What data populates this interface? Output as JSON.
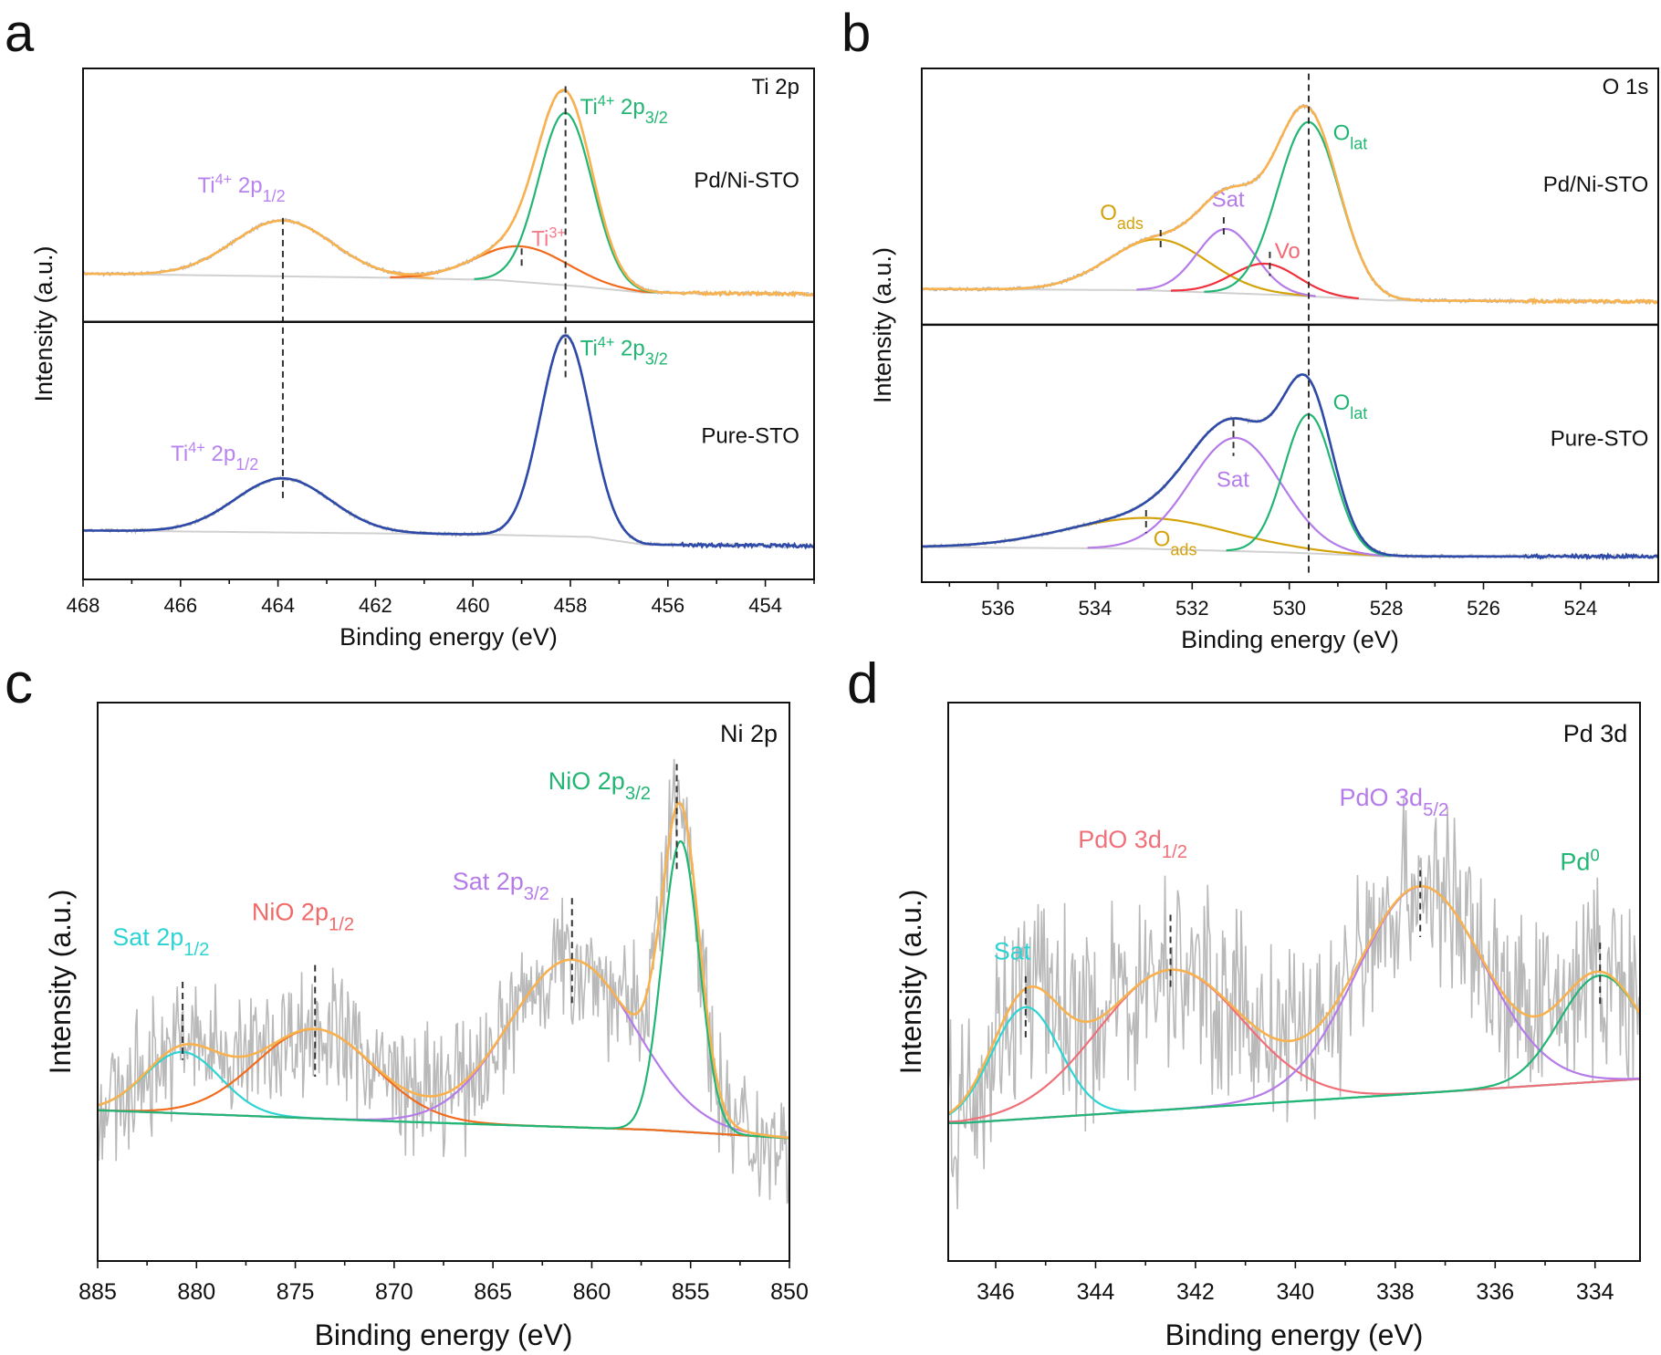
{
  "chart_data": [
    {
      "panel": "a",
      "type": "line",
      "element_label": "Ti 2p",
      "xlabel": "Binding energy (eV)",
      "ylabel": "Intensity (a.u.)",
      "xlim": [
        468,
        453
      ],
      "xticks": [
        "468",
        "466",
        "464",
        "462",
        "460",
        "458",
        "456",
        "454"
      ],
      "tick_step": 2,
      "raw_noise": 0.006,
      "grid": false,
      "subplots": [
        {
          "sample": "Pd/Ni-STO",
          "sample_label_pos": [
            453.3,
            0.53
          ],
          "element_label_pos": [
            453.3,
            0.9
          ],
          "envelope_color": "#f7b24f",
          "background": [
            [
              468,
              0.19
            ],
            [
              462,
              0.175
            ],
            [
              459.5,
              0.165
            ],
            [
              457.8,
              0.14
            ],
            [
              456.5,
              0.115
            ],
            [
              453,
              0.11
            ]
          ],
          "peaks": [
            {
              "label": [
                {
                  "t": "Ti"
                },
                {
                  "t": "4+",
                  "s": "sup"
                },
                {
                  "t": " 2p"
                },
                {
                  "t": "1/2",
                  "s": "sub"
                }
              ],
              "center": 463.9,
              "height": 0.22,
              "fwhm": 2.4,
              "color": "#f7b24f",
              "label_color": "#b883f0",
              "label_pos": [
                465.65,
                0.51
              ]
            },
            {
              "label": [
                {
                  "t": "Ti"
                },
                {
                  "t": "3+",
                  "s": "sup"
                }
              ],
              "center": 459.0,
              "height": 0.14,
              "fwhm": 2.2,
              "color": "#f26b1d",
              "label_color": "#f57b8a",
              "label_pos": [
                458.8,
                0.3
              ]
            },
            {
              "label": [
                {
                  "t": "Ti"
                },
                {
                  "t": "4+",
                  "s": "sup"
                },
                {
                  "t": " 2p"
                },
                {
                  "t": "3/2",
                  "s": "sub"
                }
              ],
              "center": 458.1,
              "height": 0.68,
              "fwhm": 1.3,
              "color": "#22b573",
              "label_color": "#22b573",
              "label_pos": [
                457.8,
                0.82
              ]
            }
          ]
        },
        {
          "sample": "Pure-STO",
          "sample_label_pos": [
            453.3,
            0.53
          ],
          "envelope_color": "#2e4aa8",
          "background": [
            [
              468,
              0.19
            ],
            [
              460,
              0.175
            ],
            [
              457.6,
              0.165
            ],
            [
              456.5,
              0.135
            ],
            [
              453,
              0.13
            ]
          ],
          "peaks": [
            {
              "label": [
                {
                  "t": "Ti"
                },
                {
                  "t": "4+",
                  "s": "sup"
                },
                {
                  "t": " 2p"
                },
                {
                  "t": "1/2",
                  "s": "sub"
                }
              ],
              "center": 463.9,
              "height": 0.21,
              "fwhm": 2.3,
              "color": "#2e4aa8",
              "label_color": "#b883f0",
              "label_pos": [
                466.2,
                0.46
              ]
            },
            {
              "label": [
                {
                  "t": "Ti"
                },
                {
                  "t": "4+",
                  "s": "sup"
                },
                {
                  "t": " 2p"
                },
                {
                  "t": "3/2",
                  "s": "sub"
                }
              ],
              "center": 458.1,
              "height": 0.78,
              "fwhm": 1.2,
              "color": "#2e4aa8",
              "label_color": "#22b573",
              "label_pos": [
                457.8,
                0.87
              ]
            }
          ]
        }
      ],
      "markers": [
        {
          "x": 463.9,
          "from": [
            0,
            0.41
          ],
          "to": [
            1,
            0.3
          ]
        },
        {
          "x": 458.1,
          "from": [
            0,
            0.93
          ],
          "to": [
            1,
            0.77
          ]
        },
        {
          "x": 459.0,
          "from": [
            0,
            0.29
          ],
          "to": [
            0,
            0.21
          ]
        }
      ]
    },
    {
      "panel": "b",
      "type": "line",
      "element_label": "O 1s",
      "xlabel": "Binding energy (eV)",
      "ylabel": "Intensity (a.u.)",
      "xlim": [
        537.57,
        522.4
      ],
      "xticks": [
        "536",
        "534",
        "532",
        "530",
        "528",
        "526",
        "524"
      ],
      "tick_step": 2,
      "raw_noise": 0.006,
      "grid": false,
      "subplots": [
        {
          "sample": "Pd/Ni-STO",
          "sample_label_pos": [
            522.6,
            0.52
          ],
          "element_label_pos": [
            522.6,
            0.9
          ],
          "envelope_color": "#f7b24f",
          "background": [
            [
              537.57,
              0.14
            ],
            [
              533,
              0.135
            ],
            [
              530,
              0.115
            ],
            [
              528,
              0.095
            ],
            [
              522.4,
              0.09
            ]
          ],
          "peaks": [
            {
              "label": [
                {
                  "t": "O"
                },
                {
                  "t": "ads",
                  "s": "sub"
                }
              ],
              "center": 532.7,
              "height": 0.2,
              "fwhm": 2.4,
              "color": "#d4a20a",
              "label_color": "#d4a20a",
              "label_pos": [
                533.9,
                0.41
              ]
            },
            {
              "label": [
                {
                  "t": "Sat"
                }
              ],
              "center": 531.3,
              "height": 0.25,
              "fwhm": 1.4,
              "color": "#b57be8",
              "label_color": "#b57be8",
              "label_pos": [
                531.6,
                0.46
              ]
            },
            {
              "label": [
                {
                  "t": "Vo"
                }
              ],
              "center": 530.5,
              "height": 0.12,
              "fwhm": 1.6,
              "color": "#f0303c",
              "label_color": "#f26a74",
              "label_pos": [
                530.3,
                0.26
              ]
            },
            {
              "label": [
                {
                  "t": "O"
                },
                {
                  "t": "lat",
                  "s": "sub"
                }
              ],
              "center": 529.6,
              "height": 0.68,
              "fwhm": 1.5,
              "color": "#22b573",
              "label_color": "#22b573",
              "label_pos": [
                529.1,
                0.72
              ]
            }
          ]
        },
        {
          "sample": "Pure-STO",
          "sample_label_pos": [
            522.6,
            0.53
          ],
          "envelope_color": "#2e4aa8",
          "background": [
            [
              537.57,
              0.136
            ],
            [
              533,
              0.13
            ],
            [
              530,
              0.115
            ],
            [
              528,
              0.1
            ],
            [
              522.4,
              0.1
            ]
          ],
          "peaks": [
            {
              "label": [
                {
                  "t": "O"
                },
                {
                  "t": "ads",
                  "s": "sub"
                }
              ],
              "center": 532.9,
              "height": 0.12,
              "fwhm": 4.0,
              "color": "#d4a20a",
              "label_color": "#d4a20a",
              "label_pos": [
                532.8,
                0.14
              ]
            },
            {
              "label": [
                {
                  "t": "Sat"
                }
              ],
              "center": 531.1,
              "height": 0.44,
              "fwhm": 2.2,
              "color": "#b57be8",
              "label_color": "#b57be8",
              "label_pos": [
                531.5,
                0.37
              ]
            },
            {
              "label": [
                {
                  "t": "O"
                },
                {
                  "t": "lat",
                  "s": "sub"
                }
              ],
              "center": 529.6,
              "height": 0.54,
              "fwhm": 1.2,
              "color": "#22b573",
              "label_color": "#22b573",
              "label_pos": [
                529.1,
                0.67
              ]
            }
          ]
        }
      ],
      "markers": [
        {
          "x": 529.6,
          "from": [
            0,
            0.98
          ],
          "to": [
            1,
            0.02
          ]
        },
        {
          "x": 532.65,
          "from": [
            0,
            0.37
          ],
          "to": [
            0,
            0.29
          ]
        },
        {
          "x": 531.35,
          "from": [
            0,
            0.42
          ],
          "to": [
            0,
            0.34
          ]
        },
        {
          "x": 530.4,
          "from": [
            0,
            0.285
          ],
          "to": [
            0,
            0.19
          ]
        },
        {
          "x": 531.15,
          "from": [
            1,
            0.63
          ],
          "to": [
            1,
            0.49
          ]
        },
        {
          "x": 532.95,
          "from": [
            1,
            0.28
          ],
          "to": [
            1,
            0.19
          ]
        }
      ]
    },
    {
      "panel": "c",
      "type": "line",
      "element_label": "Ni 2p",
      "xlabel": "Binding energy (eV)",
      "ylabel": "Intensity (a.u.)",
      "xlim": [
        885,
        850
      ],
      "xticks": [
        "885",
        "880",
        "875",
        "870",
        "865",
        "860",
        "855",
        "850"
      ],
      "tick_step": 5,
      "raw_noise": 0.09,
      "grid": false,
      "subplots": [
        {
          "element_label_pos": [
            850.6,
            0.93
          ],
          "envelope_color": "#f7b24f",
          "background": [
            [
              885,
              0.27
            ],
            [
              870,
              0.25
            ],
            [
              857,
              0.235
            ],
            [
              850,
              0.22
            ]
          ],
          "peaks": [
            {
              "label": [
                {
                  "t": "Sat 2p"
                },
                {
                  "t": "1/2",
                  "s": "sub"
                }
              ],
              "center": 880.7,
              "height": 0.11,
              "fwhm": 4.5,
              "color": "#2ed3d3",
              "label_color": "#2ed3d3",
              "label_pos": [
                884.25,
                0.565
              ]
            },
            {
              "label": [
                {
                  "t": "NiO 2p"
                },
                {
                  "t": "1/2",
                  "s": "sub"
                }
              ],
              "center": 874.0,
              "height": 0.16,
              "fwhm": 7.0,
              "color": "#f26b1d",
              "label_color": "#f06a6a",
              "label_pos": [
                877.2,
                0.61
              ]
            },
            {
              "label": [
                {
                  "t": "Sat 2p"
                },
                {
                  "t": "3/2",
                  "s": "sub"
                }
              ],
              "center": 861.0,
              "height": 0.3,
              "fwhm": 7.5,
              "color": "#b57be8",
              "label_color": "#b57be8",
              "label_pos": [
                867.05,
                0.665
              ]
            },
            {
              "label": [
                {
                  "t": "NiO 2p"
                },
                {
                  "t": "3/2",
                  "s": "sub"
                }
              ],
              "center": 855.5,
              "height": 0.52,
              "fwhm": 2.2,
              "color": "#22b573",
              "label_color": "#22b573",
              "label_pos": [
                862.2,
                0.845
              ]
            }
          ]
        }
      ],
      "markers": [
        {
          "x": 880.7,
          "from": [
            0,
            0.5
          ],
          "to": [
            0,
            0.36
          ]
        },
        {
          "x": 874.0,
          "from": [
            0,
            0.53
          ],
          "to": [
            0,
            0.33
          ]
        },
        {
          "x": 861.0,
          "from": [
            0,
            0.65
          ],
          "to": [
            0,
            0.46
          ]
        },
        {
          "x": 855.7,
          "from": [
            0,
            0.89
          ],
          "to": [
            0,
            0.7
          ]
        }
      ]
    },
    {
      "panel": "d",
      "type": "line",
      "element_label": "Pd 3d",
      "xlabel": "Binding energy (eV)",
      "ylabel": "Intensity (a.u.)",
      "xlim": [
        346.95,
        333.1
      ],
      "xticks": [
        "346",
        "344",
        "342",
        "340",
        "338",
        "336",
        "334"
      ],
      "tick_step": 2,
      "raw_noise": 0.13,
      "grid": false,
      "subplots": [
        {
          "element_label_pos": [
            333.35,
            0.93
          ],
          "envelope_color": "#f7b24f",
          "background": [
            [
              346.7,
              0.247
            ],
            [
              333.1,
              0.326
            ]
          ],
          "peaks": [
            {
              "label": [
                {
                  "t": "Sat"
                }
              ],
              "center": 345.4,
              "height": 0.2,
              "fwhm": 1.6,
              "color": "#2ed3d3",
              "label_color": "#2ed3d3",
              "label_pos": [
                346.04,
                0.54
              ]
            },
            {
              "label": [
                {
                  "t": "PdO 3d"
                },
                {
                  "t": "1/2",
                  "s": "sub"
                }
              ],
              "center": 342.5,
              "height": 0.25,
              "fwhm": 3.4,
              "color": "#f0707a",
              "label_color": "#f0707a",
              "label_pos": [
                344.35,
                0.74
              ]
            },
            {
              "label": [
                {
                  "t": "PdO 3d"
                },
                {
                  "t": "5/2",
                  "s": "sub"
                }
              ],
              "center": 337.5,
              "height": 0.37,
              "fwhm": 3.0,
              "color": "#b57be8",
              "label_color": "#b57be8",
              "label_pos": [
                339.12,
                0.815
              ]
            },
            {
              "label": [
                {
                  "t": "Pd"
                },
                {
                  "t": "0",
                  "s": "sup"
                }
              ],
              "center": 333.9,
              "height": 0.19,
              "fwhm": 1.9,
              "color": "#22b573",
              "label_color": "#22b573",
              "label_pos": [
                334.7,
                0.7
              ]
            }
          ]
        }
      ],
      "markers": [
        {
          "x": 345.4,
          "from": [
            0,
            0.51
          ],
          "to": [
            0,
            0.4
          ]
        },
        {
          "x": 342.5,
          "from": [
            0,
            0.62
          ],
          "to": [
            0,
            0.49
          ]
        },
        {
          "x": 337.5,
          "from": [
            0,
            0.7
          ],
          "to": [
            0,
            0.58
          ]
        },
        {
          "x": 333.9,
          "from": [
            0,
            0.57
          ],
          "to": [
            0,
            0.455
          ]
        }
      ]
    }
  ],
  "colors": {
    "raw_data": "#b9b9b9",
    "background": "#d0d0d0",
    "marker": "#333333"
  }
}
